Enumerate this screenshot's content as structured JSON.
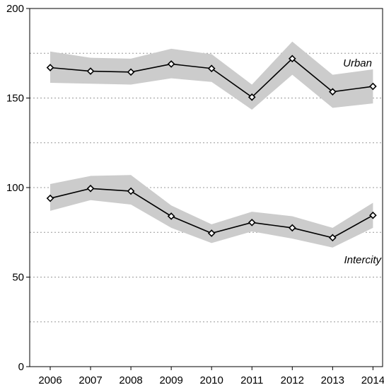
{
  "chart_data": {
    "type": "line",
    "x": [
      2006,
      2007,
      2008,
      2009,
      2010,
      2011,
      2012,
      2013,
      2014
    ],
    "x_tick_labels": [
      "2006",
      "2007",
      "2008",
      "2009",
      "2010",
      "2011",
      "2012",
      "2013",
      "2014"
    ],
    "ylim": [
      0,
      200
    ],
    "y_ticks": [
      0,
      50,
      100,
      150,
      200
    ],
    "y_tick_labels": [
      "0",
      "50",
      "100",
      "150",
      "200"
    ],
    "gridlines_y": [
      25,
      50,
      75,
      100,
      125,
      150,
      175
    ],
    "grid": "horizontal dotted",
    "legend": "none (series labelled directly)",
    "marker": "open diamond",
    "band_color": "#cccccc",
    "line_color": "#000000",
    "series": [
      {
        "name": "Urban",
        "values": [
          167,
          165,
          164.5,
          169,
          166.5,
          150.5,
          172,
          153.5,
          156.5
        ],
        "lower": [
          158.5,
          158,
          157.5,
          161,
          159,
          143.5,
          163,
          144.5,
          147
        ],
        "upper": [
          176,
          172.5,
          172,
          177.5,
          174.5,
          157.5,
          181.5,
          163,
          166
        ]
      },
      {
        "name": "Intercity",
        "values": [
          94,
          99.5,
          98,
          84,
          74.5,
          80.5,
          77.5,
          72,
          84.5
        ],
        "lower": [
          87,
          93,
          90.5,
          77.5,
          69,
          75.5,
          71.5,
          66.5,
          77.5
        ],
        "upper": [
          102,
          106.5,
          107,
          90,
          79.5,
          86.5,
          84,
          77.5,
          91.5
        ]
      }
    ]
  }
}
